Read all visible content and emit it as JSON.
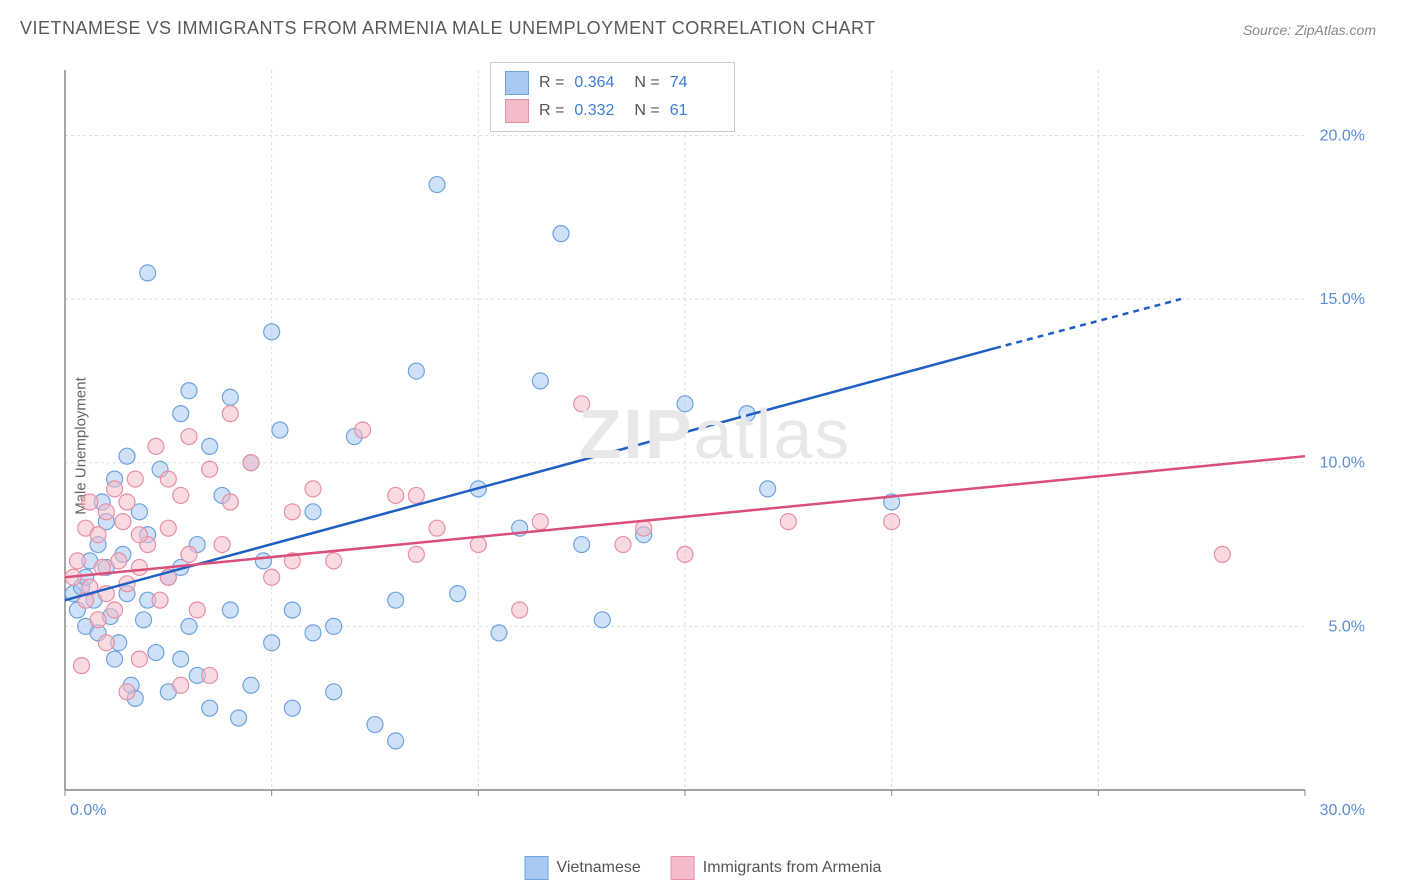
{
  "title": "VIETNAMESE VS IMMIGRANTS FROM ARMENIA MALE UNEMPLOYMENT CORRELATION CHART",
  "source": "Source: ZipAtlas.com",
  "ylabel": "Male Unemployment",
  "watermark_bold": "ZIP",
  "watermark_rest": "atlas",
  "chart": {
    "type": "scatter",
    "xlim": [
      0,
      30
    ],
    "ylim": [
      0,
      22
    ],
    "xtick_labels": [
      "0.0%",
      "30.0%"
    ],
    "ytick_values": [
      5,
      10,
      15,
      20
    ],
    "ytick_labels": [
      "5.0%",
      "10.0%",
      "15.0%",
      "20.0%"
    ],
    "grid_color": "#dddddd",
    "axis_color": "#888888",
    "background_color": "#ffffff",
    "tick_label_color": "#5b8dd6",
    "point_radius": 8,
    "point_opacity": 0.55,
    "trend_line_width": 2.5
  },
  "series": [
    {
      "name": "Vietnamese",
      "color_fill": "#a8c8ef",
      "color_stroke": "#6fa3e0",
      "trend_color": "#1f5fc4",
      "R": "0.364",
      "N": "74",
      "trend": {
        "x1": 0,
        "y1": 5.8,
        "x2_solid": 22.5,
        "y2_solid": 13.5,
        "x2_dash": 27,
        "y2_dash": 15.0
      },
      "points": [
        [
          0.2,
          6.0
        ],
        [
          0.3,
          5.5
        ],
        [
          0.4,
          6.2
        ],
        [
          0.5,
          5.0
        ],
        [
          0.5,
          6.5
        ],
        [
          0.6,
          7.0
        ],
        [
          0.7,
          5.8
        ],
        [
          0.8,
          7.5
        ],
        [
          0.8,
          4.8
        ],
        [
          1.0,
          6.8
        ],
        [
          1.0,
          8.2
        ],
        [
          1.1,
          5.3
        ],
        [
          1.2,
          9.5
        ],
        [
          1.3,
          4.5
        ],
        [
          1.4,
          7.2
        ],
        [
          1.5,
          6.0
        ],
        [
          1.5,
          10.2
        ],
        [
          1.6,
          3.2
        ],
        [
          1.8,
          8.5
        ],
        [
          1.9,
          5.2
        ],
        [
          2.0,
          15.8
        ],
        [
          2.0,
          7.8
        ],
        [
          2.2,
          4.2
        ],
        [
          2.3,
          9.8
        ],
        [
          2.5,
          6.5
        ],
        [
          2.5,
          3.0
        ],
        [
          2.8,
          11.5
        ],
        [
          3.0,
          5.0
        ],
        [
          3.0,
          12.2
        ],
        [
          3.2,
          7.5
        ],
        [
          3.2,
          3.5
        ],
        [
          3.5,
          10.5
        ],
        [
          3.8,
          9.0
        ],
        [
          4.0,
          12.0
        ],
        [
          4.0,
          5.5
        ],
        [
          4.2,
          2.2
        ],
        [
          4.5,
          10.0
        ],
        [
          4.8,
          7.0
        ],
        [
          5.0,
          14.0
        ],
        [
          5.0,
          4.5
        ],
        [
          5.2,
          11.0
        ],
        [
          5.5,
          2.5
        ],
        [
          6.0,
          8.5
        ],
        [
          6.0,
          4.8
        ],
        [
          6.5,
          3.0
        ],
        [
          7.0,
          10.8
        ],
        [
          7.5,
          2.0
        ],
        [
          8.0,
          5.8
        ],
        [
          8.0,
          1.5
        ],
        [
          8.5,
          12.8
        ],
        [
          9.0,
          18.5
        ],
        [
          9.5,
          6.0
        ],
        [
          10.0,
          9.2
        ],
        [
          10.5,
          4.8
        ],
        [
          11.0,
          8.0
        ],
        [
          11.5,
          12.5
        ],
        [
          12.0,
          17.0
        ],
        [
          12.5,
          7.5
        ],
        [
          13.0,
          5.2
        ],
        [
          14.0,
          7.8
        ],
        [
          15.0,
          11.8
        ],
        [
          16.5,
          11.5
        ],
        [
          17.0,
          9.2
        ],
        [
          20.0,
          8.8
        ],
        [
          1.7,
          2.8
        ],
        [
          2.8,
          4.0
        ],
        [
          3.5,
          2.5
        ],
        [
          4.5,
          3.2
        ],
        [
          5.5,
          5.5
        ],
        [
          0.9,
          8.8
        ],
        [
          1.2,
          4.0
        ],
        [
          2.0,
          5.8
        ],
        [
          2.8,
          6.8
        ],
        [
          6.5,
          5.0
        ]
      ]
    },
    {
      "name": "Immigrants from Armenia",
      "color_fill": "#f4bcc8",
      "color_stroke": "#e88fa5",
      "trend_color": "#d94f7a",
      "R": "0.332",
      "N": "61",
      "trend": {
        "x1": 0,
        "y1": 6.5,
        "x2_solid": 30,
        "y2_solid": 10.2,
        "x2_dash": 30,
        "y2_dash": 10.2
      },
      "points": [
        [
          0.2,
          6.5
        ],
        [
          0.3,
          7.0
        ],
        [
          0.5,
          5.8
        ],
        [
          0.5,
          8.0
        ],
        [
          0.6,
          6.2
        ],
        [
          0.8,
          7.8
        ],
        [
          0.8,
          5.2
        ],
        [
          1.0,
          8.5
        ],
        [
          1.0,
          6.0
        ],
        [
          1.2,
          9.2
        ],
        [
          1.2,
          5.5
        ],
        [
          1.3,
          7.0
        ],
        [
          1.5,
          8.8
        ],
        [
          1.5,
          6.3
        ],
        [
          1.7,
          9.5
        ],
        [
          1.8,
          6.8
        ],
        [
          1.8,
          4.0
        ],
        [
          2.0,
          7.5
        ],
        [
          2.2,
          10.5
        ],
        [
          2.3,
          5.8
        ],
        [
          2.5,
          8.0
        ],
        [
          2.5,
          6.5
        ],
        [
          2.8,
          9.0
        ],
        [
          3.0,
          10.8
        ],
        [
          3.0,
          7.2
        ],
        [
          3.2,
          5.5
        ],
        [
          3.5,
          9.8
        ],
        [
          3.5,
          3.5
        ],
        [
          3.8,
          7.5
        ],
        [
          4.0,
          8.8
        ],
        [
          4.5,
          10.0
        ],
        [
          5.0,
          6.5
        ],
        [
          5.5,
          8.5
        ],
        [
          6.0,
          9.2
        ],
        [
          6.5,
          7.0
        ],
        [
          7.2,
          11.0
        ],
        [
          8.0,
          9.0
        ],
        [
          8.5,
          7.2
        ],
        [
          9.0,
          8.0
        ],
        [
          10.0,
          7.5
        ],
        [
          11.0,
          5.5
        ],
        [
          11.5,
          8.2
        ],
        [
          12.5,
          11.8
        ],
        [
          13.5,
          7.5
        ],
        [
          14.0,
          8.0
        ],
        [
          15.0,
          7.2
        ],
        [
          17.5,
          8.2
        ],
        [
          20.0,
          8.2
        ],
        [
          28.0,
          7.2
        ],
        [
          0.4,
          3.8
        ],
        [
          1.0,
          4.5
        ],
        [
          1.5,
          3.0
        ],
        [
          2.8,
          3.2
        ],
        [
          0.6,
          8.8
        ],
        [
          1.8,
          7.8
        ],
        [
          2.5,
          9.5
        ],
        [
          4.0,
          11.5
        ],
        [
          5.5,
          7.0
        ],
        [
          8.5,
          9.0
        ],
        [
          0.9,
          6.8
        ],
        [
          1.4,
          8.2
        ]
      ]
    }
  ],
  "legend_stats": {
    "r_label": "R =",
    "n_label": "N ="
  },
  "bottom_legend": {
    "items": [
      "Vietnamese",
      "Immigrants from Armenia"
    ]
  }
}
